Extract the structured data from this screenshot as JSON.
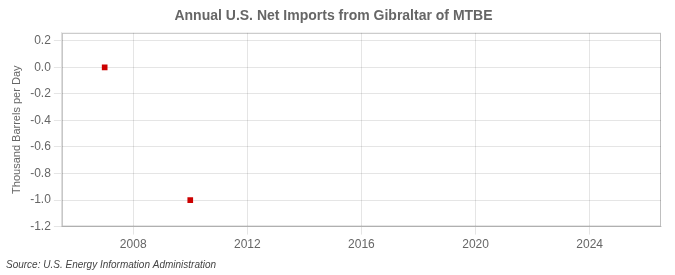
{
  "chart_data": {
    "type": "scatter",
    "title": "Annual U.S. Net Imports from Gibraltar of MTBE",
    "ylabel": "Thousand Barrels per Day",
    "annotations": [
      "Source: U.S. Energy Information Administration"
    ],
    "x": [
      2007,
      2010
    ],
    "values": [
      0.0,
      -1.0
    ],
    "color": "#cc0000",
    "marker": "square",
    "xlim": [
      2005.5,
      2026.5
    ],
    "ylim": [
      -1.2,
      0.26
    ],
    "xticks": [
      2008,
      2012,
      2016,
      2020,
      2024
    ],
    "yticks": [
      -1.2,
      {
        "value": -1.0,
        "label": "-1.0"
      },
      -0.8,
      -0.6,
      -0.4,
      -0.2,
      {
        "value": 0.0,
        "label": "0.0"
      },
      0.2
    ],
    "grid": true
  }
}
